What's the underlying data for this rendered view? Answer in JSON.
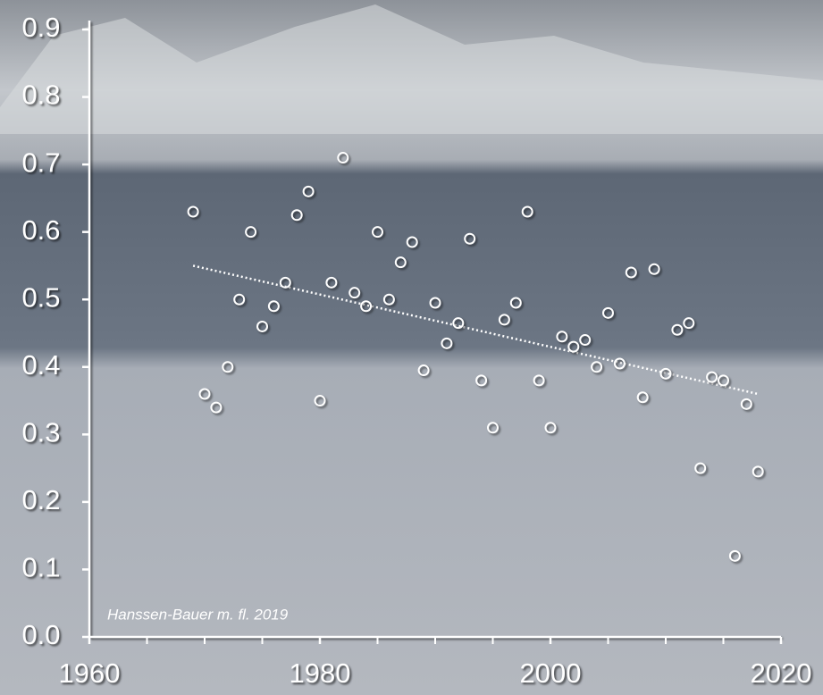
{
  "chart_data": {
    "type": "scatter",
    "x": [
      1969,
      1970,
      1971,
      1972,
      1973,
      1974,
      1975,
      1976,
      1977,
      1978,
      1979,
      1980,
      1981,
      1982,
      1983,
      1984,
      1985,
      1986,
      1987,
      1988,
      1989,
      1990,
      1991,
      1992,
      1993,
      1994,
      1995,
      1996,
      1997,
      1998,
      1999,
      2000,
      2001,
      2002,
      2003,
      2004,
      2005,
      2006,
      2007,
      2008,
      2009,
      2010,
      2011,
      2012,
      2013,
      2014,
      2015,
      2016,
      2017,
      2018
    ],
    "values": [
      0.63,
      0.36,
      0.34,
      0.4,
      0.5,
      0.6,
      0.46,
      0.49,
      0.525,
      0.625,
      0.66,
      0.35,
      0.525,
      0.71,
      0.51,
      0.49,
      0.6,
      0.5,
      0.555,
      0.585,
      0.395,
      0.495,
      0.435,
      0.465,
      0.59,
      0.38,
      0.31,
      0.47,
      0.495,
      0.63,
      0.38,
      0.31,
      0.445,
      0.43,
      0.44,
      0.4,
      0.48,
      0.405,
      0.54,
      0.355,
      0.545,
      0.39,
      0.455,
      0.465,
      0.25,
      0.385,
      0.38,
      0.12,
      0.345,
      0.245
    ],
    "trend": {
      "x": [
        1969,
        2018
      ],
      "values": [
        0.55,
        0.36
      ]
    },
    "xlim": [
      1960,
      2020
    ],
    "xticks": [
      1960,
      1980,
      2000,
      2020
    ],
    "xminorticks": [
      1965,
      1970,
      1975,
      1985,
      1990,
      1995,
      2005,
      2010,
      2015
    ],
    "ylim": [
      0,
      0.9
    ],
    "yticks": [
      {
        "value": 0,
        "label": "0.0"
      },
      0.1,
      0.2,
      0.3,
      0.4,
      0.5,
      0.6,
      0.7,
      0.8,
      0.9
    ],
    "annotation": "Hanssen-Bauer m. fl. 2019"
  }
}
